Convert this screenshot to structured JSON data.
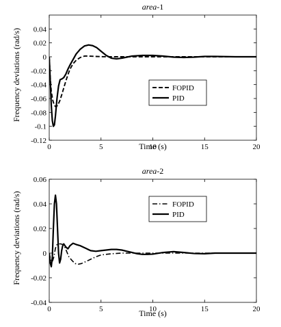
{
  "chart_data": [
    {
      "type": "line",
      "title": "area-1",
      "title_italic_part": "area",
      "title_suffix": "-1",
      "xlabel": "Time (s)",
      "ylabel": "Frequency deviations (rad/s)",
      "xlim": [
        0,
        20
      ],
      "ylim": [
        -0.12,
        0.06
      ],
      "xticks": [
        0,
        5,
        10,
        15,
        20
      ],
      "xtick_labels": [
        "0",
        "5",
        "10",
        "15",
        "20"
      ],
      "yticks": [
        -0.12,
        -0.1,
        -0.08,
        -0.06,
        -0.04,
        -0.02,
        0,
        0.02,
        0.04
      ],
      "ytick_labels": [
        "-0.12",
        "-0.1",
        "-0.08",
        "-0.06",
        "-0.04",
        "-0.02",
        "0",
        "0.02",
        "0.04"
      ],
      "grid": false,
      "legend_position": "center-right",
      "series": [
        {
          "name": "FOPID",
          "style": "dashed",
          "x": [
            0,
            0.1,
            0.2,
            0.35,
            0.5,
            0.65,
            0.8,
            1.0,
            1.2,
            1.4,
            1.6,
            1.8,
            2.0,
            2.3,
            2.6,
            3.0,
            3.4,
            3.8,
            4.5,
            5.5,
            7,
            10,
            15,
            20
          ],
          "y": [
            0,
            -0.03,
            -0.05,
            -0.063,
            -0.07,
            -0.072,
            -0.07,
            -0.064,
            -0.055,
            -0.045,
            -0.035,
            -0.026,
            -0.018,
            -0.01,
            -0.005,
            -0.001,
            0.001,
            0.001,
            0.0005,
            0,
            0,
            0,
            0,
            0
          ]
        },
        {
          "name": "PID",
          "style": "solid",
          "x": [
            0,
            0.1,
            0.2,
            0.3,
            0.4,
            0.5,
            0.6,
            0.75,
            0.9,
            1.05,
            1.2,
            1.4,
            1.6,
            1.8,
            2.0,
            2.3,
            2.6,
            3.0,
            3.4,
            3.8,
            4.2,
            4.6,
            5.0,
            5.5,
            6.0,
            6.5,
            7.0,
            7.5,
            8.0,
            9.0,
            10.0,
            11.0,
            12.0,
            13.0,
            14.0,
            15.0,
            16.0,
            18.0,
            20.0
          ],
          "y": [
            0,
            -0.035,
            -0.07,
            -0.092,
            -0.1,
            -0.098,
            -0.085,
            -0.06,
            -0.042,
            -0.033,
            -0.032,
            -0.03,
            -0.025,
            -0.018,
            -0.012,
            -0.004,
            0.004,
            0.011,
            0.0155,
            0.017,
            0.016,
            0.013,
            0.008,
            0.002,
            -0.002,
            -0.003,
            -0.002,
            -0.0005,
            0.001,
            0.002,
            0.002,
            0.001,
            -0.0005,
            -0.001,
            -0.0005,
            0.0005,
            0.0005,
            0,
            0
          ]
        }
      ]
    },
    {
      "type": "line",
      "title": "area-2",
      "title_italic_part": "area",
      "title_suffix": "-2",
      "xlabel": "Time (s)",
      "ylabel": "Frequency deviations (rad/s)",
      "xlim": [
        0,
        20
      ],
      "ylim": [
        -0.04,
        0.06
      ],
      "xticks": [
        0,
        5,
        10,
        15,
        20
      ],
      "xtick_labels": [
        "0",
        "5",
        "10",
        "15",
        "20"
      ],
      "yticks": [
        -0.04,
        -0.02,
        0,
        0.02,
        0.04,
        0.06
      ],
      "ytick_labels": [
        "-0.04",
        "-0.02",
        "0",
        "0.02",
        "0.04",
        "0.06"
      ],
      "grid": false,
      "legend_position": "top-right",
      "series": [
        {
          "name": "FOPID",
          "style": "dashdot",
          "x": [
            0,
            0.15,
            0.3,
            0.45,
            0.6,
            0.75,
            0.9,
            1.1,
            1.3,
            1.5,
            1.7,
            1.9,
            2.2,
            2.5,
            2.8,
            3.1,
            3.5,
            4.0,
            4.5,
            5.0,
            6.0,
            7.0,
            8.0,
            10.0,
            13.0,
            16.0,
            20.0
          ],
          "y": [
            0,
            -0.006,
            -0.007,
            -0.003,
            0.004,
            0.007,
            0.0075,
            0.0075,
            0.007,
            0.005,
            0.001,
            -0.003,
            -0.006,
            -0.0085,
            -0.009,
            -0.0085,
            -0.007,
            -0.005,
            -0.003,
            -0.0015,
            -0.0005,
            0,
            0,
            0,
            0,
            0,
            0
          ]
        },
        {
          "name": "PID",
          "style": "solid",
          "x": [
            0,
            0.1,
            0.2,
            0.3,
            0.4,
            0.5,
            0.6,
            0.7,
            0.8,
            0.9,
            1.0,
            1.1,
            1.2,
            1.3,
            1.4,
            1.6,
            1.8,
            2.0,
            2.3,
            2.6,
            3.0,
            3.5,
            4.0,
            4.5,
            5.0,
            5.5,
            6.0,
            6.5,
            7.0,
            7.5,
            8.0,
            8.5,
            9.0,
            9.5,
            10.0,
            11.0,
            12.0,
            13.0,
            14.0,
            15.0,
            16.0,
            18.0,
            20.0
          ],
          "y": [
            0,
            -0.008,
            -0.011,
            -0.003,
            0.02,
            0.04,
            0.047,
            0.04,
            0.02,
            0.0,
            -0.008,
            -0.005,
            0.002,
            0.006,
            0.0075,
            0.005,
            0.0035,
            0.006,
            0.008,
            0.007,
            0.006,
            0.004,
            0.002,
            0.0015,
            0.002,
            0.0025,
            0.003,
            0.003,
            0.0025,
            0.0015,
            0.0005,
            -0.0005,
            -0.001,
            -0.001,
            -0.0008,
            0.0005,
            0.0012,
            0.0005,
            -0.0003,
            -0.0005,
            0,
            0,
            0
          ]
        }
      ]
    }
  ]
}
